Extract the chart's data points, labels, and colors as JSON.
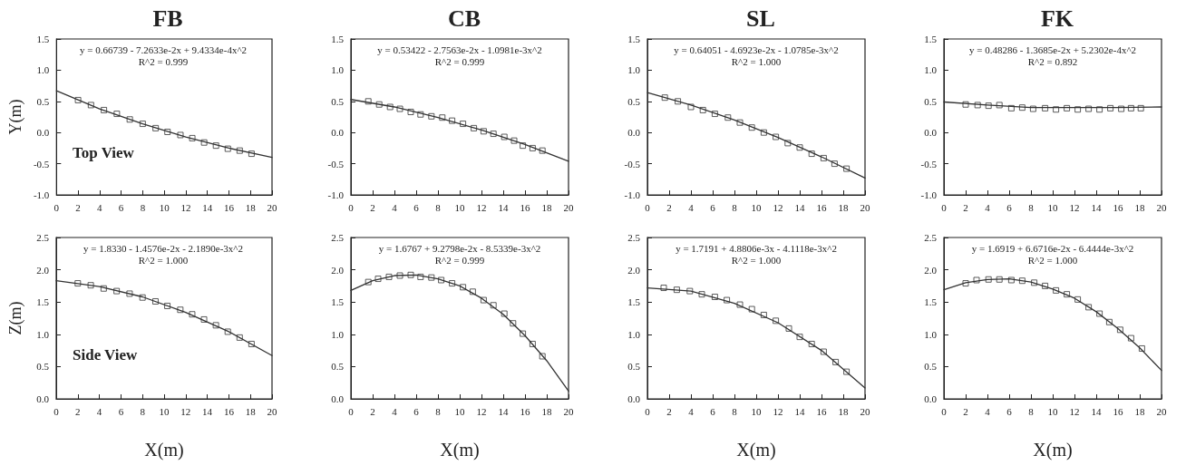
{
  "chart_data": [
    {
      "type": "scatter",
      "title": "FB",
      "ylabel": "Y(m)",
      "annotations": [
        "y = 0.66739 - 7.2633e-2x + 9.4334e-4x^2",
        "R^2 = 0.999",
        "Top View"
      ],
      "xlim": [
        0,
        20
      ],
      "xticks": [
        0,
        2,
        4,
        6,
        8,
        10,
        12,
        14,
        16,
        18,
        20
      ],
      "ylim": [
        -1,
        1.5
      ],
      "yticks": [
        {
          "value": -1,
          "label": "-1.0"
        },
        -0.5,
        {
          "value": 0,
          "label": "0.0"
        },
        0.5,
        {
          "value": 1,
          "label": "1.0"
        },
        1.5
      ],
      "grid": false,
      "series": [
        {
          "marker": "square",
          "color": "#333333",
          "x": [
            2,
            3.2,
            4.4,
            5.6,
            6.8,
            8,
            9.2,
            10.3,
            11.5,
            12.6,
            13.7,
            14.8,
            15.9,
            17,
            18.1
          ],
          "values": [
            0.52,
            0.44,
            0.36,
            0.3,
            0.21,
            0.14,
            0.07,
            0.01,
            -0.04,
            -0.09,
            -0.16,
            -0.21,
            -0.26,
            -0.29,
            -0.34
          ]
        },
        {
          "type": "line",
          "marker": "none",
          "line_style": "solid",
          "color": "#333333",
          "x": [
            0,
            4,
            8,
            12,
            16,
            20
          ],
          "values": [
            0.67,
            0.38,
            0.14,
            -0.07,
            -0.25,
            -0.4
          ]
        }
      ]
    },
    {
      "type": "scatter",
      "title": "CB",
      "annotations": [
        "y = 0.53422 - 2.7563e-2x - 1.0981e-3x^2",
        "R^2 = 0.999"
      ],
      "xlim": [
        0,
        20
      ],
      "xticks": [
        0,
        2,
        4,
        6,
        8,
        10,
        12,
        14,
        16,
        18,
        20
      ],
      "ylim": [
        -1,
        1.5
      ],
      "yticks": [
        {
          "value": -1,
          "label": "-1.0"
        },
        -0.5,
        {
          "value": 0,
          "label": "0.0"
        },
        0.5,
        {
          "value": 1,
          "label": "1.0"
        },
        1.5
      ],
      "grid": false,
      "series": [
        {
          "marker": "square",
          "color": "#333333",
          "x": [
            1.6,
            2.6,
            3.6,
            4.5,
            5.5,
            6.4,
            7.4,
            8.4,
            9.3,
            10.3,
            11.3,
            12.2,
            13.1,
            14.1,
            15,
            15.8,
            16.7,
            17.6
          ],
          "values": [
            0.5,
            0.45,
            0.41,
            0.38,
            0.33,
            0.29,
            0.26,
            0.24,
            0.19,
            0.14,
            0.07,
            0.02,
            -0.02,
            -0.07,
            -0.13,
            -0.21,
            -0.25,
            -0.29
          ]
        },
        {
          "type": "line",
          "marker": "none",
          "line_style": "solid",
          "color": "#333333",
          "x": [
            0,
            4,
            8,
            12,
            16,
            20
          ],
          "values": [
            0.53,
            0.41,
            0.24,
            0.04,
            -0.19,
            -0.46
          ]
        }
      ]
    },
    {
      "type": "scatter",
      "title": "SL",
      "annotations": [
        "y = 0.64051 - 4.6923e-2x - 1.0785e-3x^2",
        "R^2 = 1.000"
      ],
      "xlim": [
        0,
        20
      ],
      "xticks": [
        0,
        2,
        4,
        6,
        8,
        10,
        12,
        14,
        16,
        18,
        20
      ],
      "ylim": [
        -1,
        1.5
      ],
      "yticks": [
        {
          "value": -1,
          "label": "-1.0"
        },
        -0.5,
        {
          "value": 0,
          "label": "0.0"
        },
        0.5,
        {
          "value": 1,
          "label": "1.0"
        },
        1.5
      ],
      "grid": false,
      "series": [
        {
          "marker": "square",
          "color": "#333333",
          "x": [
            1.6,
            2.8,
            4,
            5.1,
            6.2,
            7.4,
            8.5,
            9.6,
            10.7,
            11.8,
            12.9,
            14,
            15.1,
            16.2,
            17.2,
            18.3
          ],
          "values": [
            0.56,
            0.5,
            0.41,
            0.36,
            0.3,
            0.24,
            0.16,
            0.08,
            0,
            -0.07,
            -0.17,
            -0.24,
            -0.34,
            -0.41,
            -0.5,
            -0.58
          ]
        },
        {
          "type": "line",
          "marker": "none",
          "line_style": "solid",
          "color": "#333333",
          "x": [
            0,
            4,
            8,
            12,
            16,
            20
          ],
          "values": [
            0.64,
            0.44,
            0.2,
            -0.08,
            -0.39,
            -0.73
          ]
        }
      ]
    },
    {
      "type": "scatter",
      "title": "FK",
      "annotations": [
        "y = 0.48286 - 1.3685e-2x + 5.2302e-4x^2",
        "R^2 = 0.892"
      ],
      "xlim": [
        0,
        20
      ],
      "xticks": [
        0,
        2,
        4,
        6,
        8,
        10,
        12,
        14,
        16,
        18,
        20
      ],
      "ylim": [
        -1,
        1.5
      ],
      "yticks": [
        {
          "value": -1,
          "label": "-1.0"
        },
        -0.5,
        {
          "value": 0,
          "label": "0.0"
        },
        0.5,
        {
          "value": 1,
          "label": "1.0"
        },
        1.5
      ],
      "grid": false,
      "series": [
        {
          "marker": "square",
          "color": "#333333",
          "x": [
            2,
            3.1,
            4.1,
            5.1,
            6.2,
            7.2,
            8.2,
            9.3,
            10.3,
            11.3,
            12.3,
            13.3,
            14.3,
            15.3,
            16.3,
            17.2,
            18.1
          ],
          "values": [
            0.45,
            0.44,
            0.43,
            0.44,
            0.39,
            0.4,
            0.38,
            0.39,
            0.37,
            0.39,
            0.37,
            0.38,
            0.37,
            0.39,
            0.38,
            0.39,
            0.39
          ]
        },
        {
          "type": "line",
          "marker": "none",
          "line_style": "solid",
          "color": "#333333",
          "x": [
            0,
            4,
            8,
            12,
            16,
            20
          ],
          "values": [
            0.49,
            0.44,
            0.4,
            0.4,
            0.4,
            0.41
          ]
        }
      ]
    },
    {
      "type": "scatter",
      "xlabel": "X(m)",
      "ylabel": "Z(m)",
      "annotations": [
        "y = 1.8330 - 1.4576e-2x - 2.1890e-3x^2",
        "R^2 = 1.000",
        "Side View"
      ],
      "xlim": [
        0,
        20
      ],
      "xticks": [
        0,
        2,
        4,
        6,
        8,
        10,
        12,
        14,
        16,
        18,
        20
      ],
      "ylim": [
        0,
        2.5
      ],
      "yticks": [
        {
          "value": 0,
          "label": "0.0"
        },
        0.5,
        {
          "value": 1,
          "label": "1.0"
        },
        1.5,
        {
          "value": 2,
          "label": "2.0"
        },
        2.5
      ],
      "grid": false,
      "series": [
        {
          "marker": "square",
          "color": "#333333",
          "x": [
            2,
            3.2,
            4.4,
            5.6,
            6.8,
            8,
            9.2,
            10.3,
            11.5,
            12.6,
            13.7,
            14.8,
            15.9,
            17,
            18.1
          ],
          "values": [
            1.79,
            1.76,
            1.71,
            1.67,
            1.63,
            1.57,
            1.51,
            1.44,
            1.38,
            1.31,
            1.23,
            1.14,
            1.04,
            0.95,
            0.85
          ]
        },
        {
          "type": "line",
          "marker": "none",
          "line_style": "solid",
          "color": "#333333",
          "x": [
            0,
            4,
            8,
            12,
            16,
            20
          ],
          "values": [
            1.83,
            1.74,
            1.58,
            1.34,
            1.04,
            0.67
          ]
        }
      ]
    },
    {
      "type": "scatter",
      "xlabel": "X(m)",
      "annotations": [
        "y = 1.6767 + 9.2798e-2x - 8.5339e-3x^2",
        "R^2 = 0.999"
      ],
      "xlim": [
        0,
        20
      ],
      "xticks": [
        0,
        2,
        4,
        6,
        8,
        10,
        12,
        14,
        16,
        18,
        20
      ],
      "ylim": [
        0,
        2.5
      ],
      "yticks": [
        {
          "value": 0,
          "label": "0.0"
        },
        0.5,
        {
          "value": 1,
          "label": "1.0"
        },
        1.5,
        {
          "value": 2,
          "label": "2.0"
        },
        2.5
      ],
      "grid": false,
      "series": [
        {
          "marker": "square",
          "color": "#333333",
          "x": [
            1.6,
            2.5,
            3.5,
            4.5,
            5.5,
            6.4,
            7.4,
            8.3,
            9.3,
            10.3,
            11.2,
            12.2,
            13.1,
            14.1,
            14.9,
            15.8,
            16.7,
            17.6
          ],
          "values": [
            1.81,
            1.86,
            1.89,
            1.91,
            1.92,
            1.89,
            1.88,
            1.84,
            1.79,
            1.73,
            1.66,
            1.53,
            1.45,
            1.32,
            1.17,
            1.01,
            0.85,
            0.66
          ]
        },
        {
          "type": "line",
          "marker": "none",
          "line_style": "solid",
          "color": "#333333",
          "x": [
            0,
            2,
            4,
            6,
            8,
            10,
            12,
            14,
            16,
            18,
            20
          ],
          "values": [
            1.68,
            1.83,
            1.91,
            1.92,
            1.86,
            1.75,
            1.56,
            1.31,
            0.98,
            0.59,
            0.12
          ]
        }
      ]
    },
    {
      "type": "scatter",
      "xlabel": "X(m)",
      "annotations": [
        "y = 1.7191 + 4.8806e-3x - 4.1118e-3x^2",
        "R^2 = 1.000"
      ],
      "xlim": [
        0,
        20
      ],
      "xticks": [
        0,
        2,
        4,
        6,
        8,
        10,
        12,
        14,
        16,
        18,
        20
      ],
      "ylim": [
        0,
        2.5
      ],
      "yticks": [
        {
          "value": 0,
          "label": "0.0"
        },
        0.5,
        {
          "value": 1,
          "label": "1.0"
        },
        1.5,
        {
          "value": 2,
          "label": "2.0"
        },
        2.5
      ],
      "grid": false,
      "series": [
        {
          "marker": "square",
          "color": "#333333",
          "x": [
            1.5,
            2.7,
            3.9,
            5,
            6.2,
            7.3,
            8.5,
            9.6,
            10.7,
            11.8,
            13,
            14,
            15.1,
            16.2,
            17.3,
            18.3
          ],
          "values": [
            1.72,
            1.69,
            1.67,
            1.62,
            1.58,
            1.53,
            1.46,
            1.39,
            1.3,
            1.21,
            1.09,
            0.96,
            0.85,
            0.73,
            0.57,
            0.42
          ]
        },
        {
          "type": "line",
          "marker": "none",
          "line_style": "solid",
          "color": "#333333",
          "x": [
            0,
            4,
            8,
            12,
            16,
            20
          ],
          "values": [
            1.72,
            1.67,
            1.48,
            1.18,
            0.75,
            0.17
          ]
        }
      ]
    },
    {
      "type": "scatter",
      "xlabel": "X(m)",
      "annotations": [
        "y = 1.6919 + 6.6716e-2x - 6.4444e-3x^2",
        "R^2 = 1.000"
      ],
      "xlim": [
        0,
        20
      ],
      "xticks": [
        0,
        2,
        4,
        6,
        8,
        10,
        12,
        14,
        16,
        18,
        20
      ],
      "ylim": [
        0,
        2.5
      ],
      "yticks": [
        {
          "value": 0,
          "label": "0.0"
        },
        0.5,
        {
          "value": 1,
          "label": "1.0"
        },
        1.5,
        {
          "value": 2,
          "label": "2.0"
        },
        2.5
      ],
      "grid": false,
      "series": [
        {
          "marker": "square",
          "color": "#333333",
          "x": [
            2,
            3,
            4.1,
            5.1,
            6.2,
            7.2,
            8.3,
            9.3,
            10.3,
            11.3,
            12.3,
            13.3,
            14.3,
            15.2,
            16.2,
            17.2,
            18.2
          ],
          "values": [
            1.79,
            1.84,
            1.85,
            1.85,
            1.84,
            1.83,
            1.8,
            1.75,
            1.68,
            1.62,
            1.54,
            1.42,
            1.32,
            1.19,
            1.07,
            0.94,
            0.78
          ]
        },
        {
          "type": "line",
          "marker": "none",
          "line_style": "solid",
          "color": "#333333",
          "x": [
            0,
            2,
            4,
            6,
            8,
            10,
            12,
            14,
            16,
            18,
            20
          ],
          "values": [
            1.69,
            1.8,
            1.85,
            1.86,
            1.81,
            1.7,
            1.56,
            1.35,
            1.09,
            0.79,
            0.44
          ]
        }
      ]
    }
  ]
}
